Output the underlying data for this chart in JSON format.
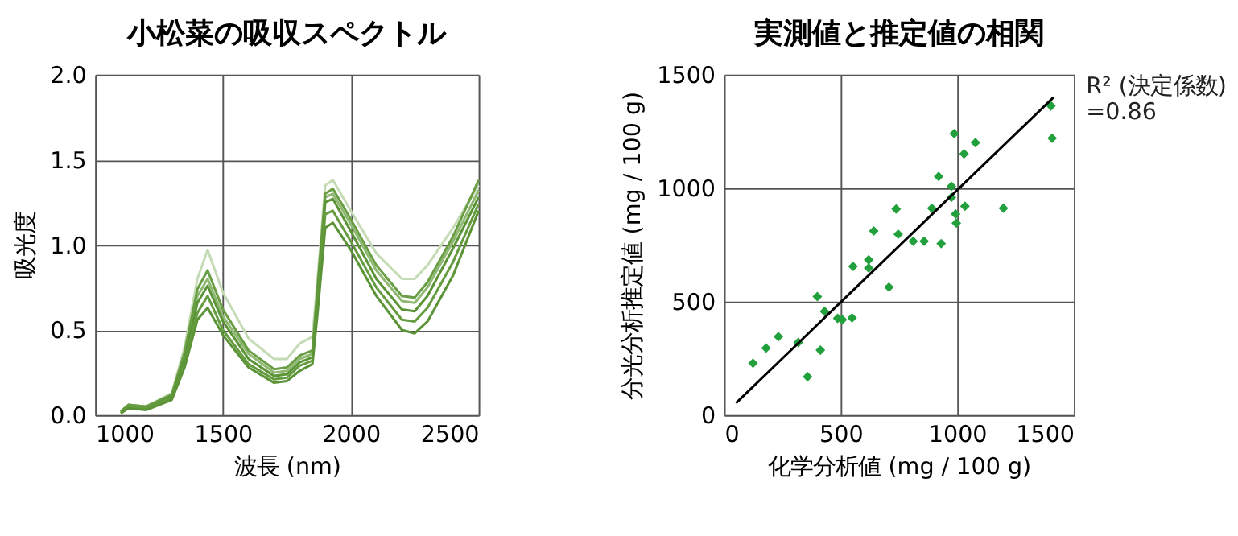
{
  "chart_data": [
    {
      "type": "line",
      "title": "小松菜の吸収スペクトル",
      "xlabel": "波長 (nm)",
      "ylabel": "吸光度",
      "x": [
        1100,
        1130,
        1200,
        1300,
        1350,
        1400,
        1440,
        1500,
        1600,
        1700,
        1750,
        1800,
        1850,
        1870,
        1900,
        1930,
        2000,
        2100,
        2200,
        2250,
        2300,
        2400,
        2500
      ],
      "series": [
        {
          "color": "#c5dbb5",
          "values": [
            0.02,
            0.06,
            0.05,
            0.13,
            0.4,
            0.8,
            0.97,
            0.72,
            0.45,
            0.33,
            0.33,
            0.42,
            0.46,
            0.8,
            1.35,
            1.38,
            1.2,
            0.95,
            0.8,
            0.8,
            0.88,
            1.1,
            1.35
          ]
        },
        {
          "color": "#8fb872",
          "values": [
            0.02,
            0.06,
            0.05,
            0.12,
            0.35,
            0.7,
            0.8,
            0.58,
            0.36,
            0.25,
            0.26,
            0.33,
            0.36,
            0.72,
            1.28,
            1.3,
            1.12,
            0.85,
            0.67,
            0.66,
            0.75,
            1.02,
            1.32
          ]
        },
        {
          "color": "#6a9e45",
          "values": [
            0.02,
            0.06,
            0.05,
            0.12,
            0.37,
            0.74,
            0.85,
            0.62,
            0.38,
            0.27,
            0.28,
            0.35,
            0.38,
            0.75,
            1.3,
            1.33,
            1.15,
            0.88,
            0.7,
            0.69,
            0.78,
            1.05,
            1.38
          ]
        },
        {
          "color": "#5b9436",
          "values": [
            0.02,
            0.05,
            0.04,
            0.11,
            0.33,
            0.66,
            0.76,
            0.55,
            0.33,
            0.23,
            0.24,
            0.31,
            0.34,
            0.7,
            1.25,
            1.27,
            1.08,
            0.8,
            0.62,
            0.61,
            0.7,
            0.98,
            1.28
          ]
        },
        {
          "color": "#669c40",
          "values": [
            0.02,
            0.05,
            0.04,
            0.1,
            0.3,
            0.6,
            0.7,
            0.5,
            0.3,
            0.21,
            0.22,
            0.29,
            0.32,
            0.65,
            1.18,
            1.2,
            1.02,
            0.75,
            0.56,
            0.55,
            0.63,
            0.9,
            1.24
          ]
        },
        {
          "color": "#5b9436",
          "values": [
            0.01,
            0.04,
            0.03,
            0.09,
            0.28,
            0.56,
            0.63,
            0.47,
            0.28,
            0.19,
            0.2,
            0.26,
            0.3,
            0.6,
            1.1,
            1.13,
            0.97,
            0.7,
            0.5,
            0.48,
            0.55,
            0.82,
            1.2
          ]
        }
      ],
      "xlim": [
        1000,
        2500
      ],
      "xticks": [
        1000,
        1500,
        2000,
        2500
      ],
      "ylim": [
        0,
        2
      ],
      "yticks": [
        {
          "value": 0,
          "label": "0.0"
        },
        0.5,
        {
          "value": 1,
          "label": "1.0"
        },
        1.5,
        {
          "value": 2,
          "label": "2.0"
        }
      ],
      "grid": true,
      "marker": "none",
      "line_style": "solid"
    },
    {
      "type": "scatter",
      "title": "実測値と推定値の相関",
      "xlabel": "化学分析値 (mg / 100 g)",
      "ylabel": "分光分析推定値 (mg / 100 g)",
      "annotations": [
        "R² (決定係数)\n=0.86"
      ],
      "series": [
        {
          "color": "#22a03c",
          "marker": "diamond",
          "x": [
            124,
            180,
            233,
            318,
            358,
            400,
            413,
            431,
            487,
            507,
            549,
            553,
            620,
            620,
            642,
            707,
            738,
            747,
            811,
            858,
            891,
            920,
            931,
            975,
            975,
            987,
            993,
            996,
            1029,
            1033,
            1078,
            1198,
            1402,
            1407
          ],
          "values": [
            229,
            295,
            346,
            320,
            169,
            522,
            286,
            457,
            426,
            420,
            428,
            655,
            684,
            648,
            811,
            564,
            908,
            797,
            766,
            766,
            911,
            1051,
            755,
            1008,
            959,
            1240,
            886,
            846,
            1151,
            920,
            1200,
            911,
            1362,
            1220
          ]
        },
        {
          "type": "line",
          "color": "#000000",
          "marker": "none",
          "line_style": "solid",
          "x": [
            51,
            1413
          ],
          "values": [
            53,
            1400
          ]
        }
      ],
      "xlim": [
        0,
        1500
      ],
      "xticks": [
        0,
        500,
        1000,
        1500
      ],
      "ylim": [
        0,
        1500
      ],
      "yticks": [
        0,
        500,
        1000,
        1500
      ],
      "grid": true
    }
  ]
}
